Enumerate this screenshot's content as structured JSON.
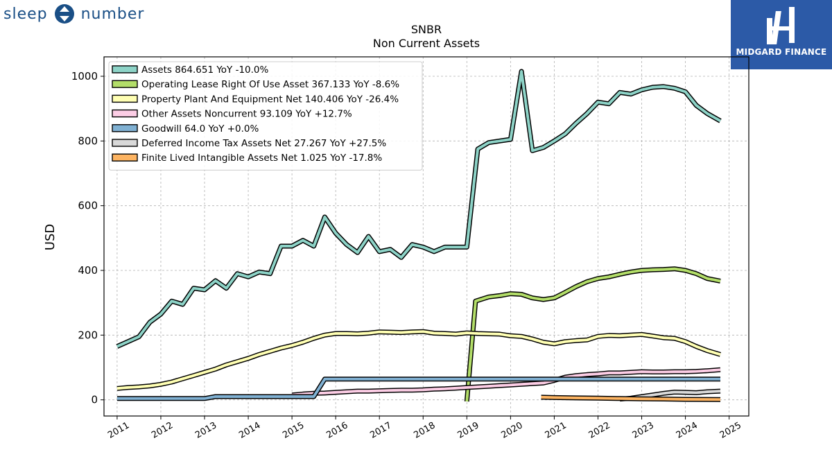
{
  "brand": {
    "left_word": "sleep",
    "right_word": "number"
  },
  "badge": {
    "label": "MIDGARD FINANCE"
  },
  "colors": {
    "brand_blue": "#1a4f86",
    "badge_blue": "#2c5aa7"
  },
  "chart_data": {
    "type": "line",
    "title": "SNBR",
    "subtitle": "Non Current  Assets",
    "ylabel": "USD",
    "xlabel": "",
    "ylim": [
      -50,
      1060
    ],
    "xlim": [
      2010.7,
      2025.45
    ],
    "yticks": [
      0,
      200,
      400,
      600,
      800,
      1000
    ],
    "xticks": [
      2011,
      2012,
      2013,
      2014,
      2015,
      2016,
      2017,
      2018,
      2019,
      2020,
      2021,
      2022,
      2023,
      2024,
      2025
    ],
    "xtick_labels": [
      "2011",
      "2012",
      "2013",
      "2014",
      "2015",
      "2016",
      "2017",
      "2018",
      "2019",
      "2020",
      "2021",
      "2022",
      "2023",
      "2024",
      "2025"
    ],
    "grid": true,
    "legend_position": "upper-left",
    "series": [
      {
        "name": "Assets",
        "legend": "Assets  864.651 YoY -10.0%",
        "color": "#8dd3c7",
        "x": [
          2011.0,
          2011.25,
          2011.5,
          2011.75,
          2012.0,
          2012.25,
          2012.5,
          2012.75,
          2013.0,
          2013.25,
          2013.5,
          2013.75,
          2014.0,
          2014.25,
          2014.5,
          2014.75,
          2015.0,
          2015.25,
          2015.5,
          2015.75,
          2016.0,
          2016.25,
          2016.5,
          2016.75,
          2017.0,
          2017.25,
          2017.5,
          2017.75,
          2018.0,
          2018.25,
          2018.5,
          2018.75,
          2019.0,
          2019.25,
          2019.5,
          2019.75,
          2020.0,
          2020.25,
          2020.5,
          2020.75,
          2021.0,
          2021.25,
          2021.5,
          2021.75,
          2022.0,
          2022.25,
          2022.5,
          2022.75,
          2023.0,
          2023.25,
          2023.5,
          2023.75,
          2024.0,
          2024.25,
          2024.5,
          2024.8
        ],
        "values": [
          165,
          180,
          195,
          240,
          265,
          305,
          295,
          345,
          340,
          368,
          345,
          390,
          380,
          395,
          390,
          475,
          475,
          493,
          475,
          565,
          515,
          480,
          455,
          505,
          458,
          465,
          440,
          480,
          472,
          458,
          472,
          472,
          472,
          775,
          795,
          800,
          805,
          1015,
          770,
          780,
          800,
          822,
          855,
          885,
          920,
          915,
          950,
          945,
          958,
          966,
          968,
          963,
          952,
          910,
          885,
          862
        ]
      },
      {
        "name": "Operating Lease Right Of Use Asset",
        "legend": "Operating Lease Right Of Use Asset  367.133 YoY -8.6%",
        "color": "#b3de69",
        "x": [
          2019.0,
          2019.2,
          2019.5,
          2019.75,
          2020.0,
          2020.25,
          2020.5,
          2020.75,
          2021.0,
          2021.25,
          2021.5,
          2021.75,
          2022.0,
          2022.25,
          2022.5,
          2022.75,
          2023.0,
          2023.25,
          2023.5,
          2023.75,
          2024.0,
          2024.25,
          2024.5,
          2024.8
        ],
        "values": [
          -5,
          305,
          318,
          322,
          328,
          326,
          315,
          310,
          315,
          332,
          350,
          365,
          375,
          380,
          388,
          395,
          400,
          402,
          403,
          405,
          400,
          390,
          375,
          367
        ]
      },
      {
        "name": "Property Plant And Equipment Net",
        "legend": "Property Plant And Equipment Net  140.406 YoY -26.4%",
        "color": "#ffffb3",
        "x": [
          2011.0,
          2011.25,
          2011.5,
          2011.75,
          2012.0,
          2012.25,
          2012.5,
          2012.75,
          2013.0,
          2013.25,
          2013.5,
          2013.75,
          2014.0,
          2014.25,
          2014.5,
          2014.75,
          2015.0,
          2015.25,
          2015.5,
          2015.75,
          2016.0,
          2016.25,
          2016.5,
          2016.75,
          2017.0,
          2017.25,
          2017.5,
          2017.75,
          2018.0,
          2018.25,
          2018.5,
          2018.75,
          2019.0,
          2019.25,
          2019.5,
          2019.75,
          2020.0,
          2020.25,
          2020.5,
          2020.75,
          2021.0,
          2021.25,
          2021.5,
          2021.75,
          2022.0,
          2022.25,
          2022.5,
          2022.75,
          2023.0,
          2023.25,
          2023.5,
          2023.75,
          2024.0,
          2024.25,
          2024.5,
          2024.8
        ],
        "values": [
          35,
          38,
          40,
          43,
          48,
          55,
          65,
          75,
          85,
          95,
          108,
          118,
          128,
          140,
          150,
          160,
          168,
          178,
          190,
          200,
          205,
          205,
          204,
          206,
          210,
          209,
          208,
          210,
          211,
          206,
          205,
          203,
          207,
          205,
          204,
          203,
          198,
          196,
          188,
          178,
          173,
          180,
          183,
          185,
          196,
          199,
          198,
          200,
          202,
          197,
          192,
          190,
          180,
          165,
          152,
          140
        ]
      },
      {
        "name": "Other Assets Noncurrent",
        "legend": "Other Assets Noncurrent  93.109 YoY +12.7%",
        "color": "#fccde5",
        "x": [
          2015.0,
          2015.25,
          2015.5,
          2015.75,
          2016.0,
          2016.25,
          2016.5,
          2016.75,
          2017.0,
          2017.25,
          2017.5,
          2017.75,
          2018.0,
          2018.25,
          2018.5,
          2018.75,
          2019.0,
          2019.25,
          2019.5,
          2019.75,
          2020.0,
          2020.25,
          2020.5,
          2020.75,
          2021.0,
          2021.25,
          2021.5,
          2021.75,
          2022.0,
          2022.25,
          2022.5,
          2022.75,
          2023.0,
          2023.25,
          2023.5,
          2023.75,
          2024.0,
          2024.25,
          2024.5,
          2024.8
        ],
        "values": [
          15,
          18,
          20,
          21,
          23,
          25,
          27,
          27,
          28,
          29,
          30,
          30,
          31,
          33,
          34,
          36,
          38,
          40,
          42,
          44,
          46,
          48,
          50,
          52,
          60,
          70,
          75,
          78,
          80,
          83,
          83,
          85,
          87,
          86,
          86,
          87,
          87,
          88,
          90,
          93
        ]
      },
      {
        "name": "Goodwill",
        "legend": "Goodwill  64.0 YoY +0.0%",
        "color": "#80b1d3",
        "x": [
          2011.0,
          2013.0,
          2013.25,
          2015.5,
          2015.75,
          2024.8
        ],
        "values": [
          4,
          4,
          10,
          10,
          64,
          64
        ]
      },
      {
        "name": "Deferred Income Tax Assets Net",
        "legend": "Deferred Income Tax Assets Net  27.267 YoY +27.5%",
        "color": "#d9d9d9",
        "x": [
          2022.5,
          2022.75,
          2023.0,
          2023.25,
          2023.5,
          2023.75,
          2024.0,
          2024.25,
          2024.5,
          2024.8
        ],
        "values": [
          2,
          5,
          10,
          15,
          20,
          24,
          23,
          22,
          25,
          27
        ]
      },
      {
        "name": "Finite Lived Intangible Assets Net",
        "legend": "Finite Lived Intangible Assets Net  1.025 YoY -17.8%",
        "color": "#fdb462",
        "x": [
          2020.7,
          2021.0,
          2021.5,
          2022.0,
          2022.5,
          2023.0,
          2023.5,
          2024.0,
          2024.8
        ],
        "values": [
          8,
          7,
          6,
          5,
          4,
          3,
          2.5,
          1.5,
          1
        ]
      }
    ]
  }
}
